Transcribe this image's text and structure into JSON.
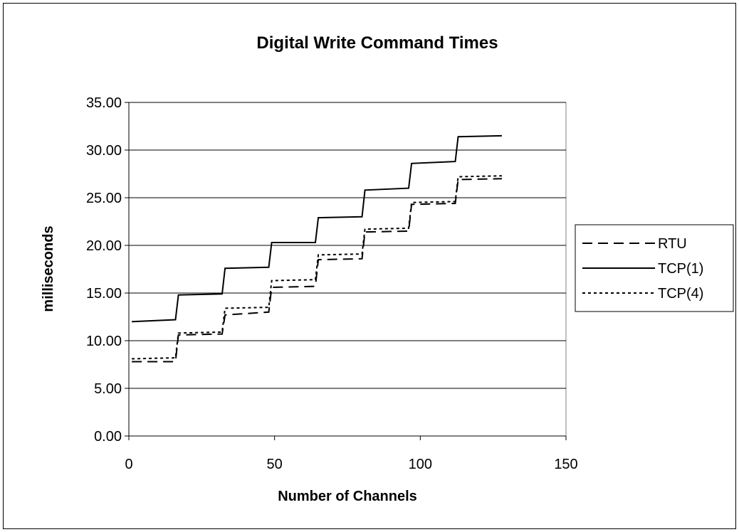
{
  "chart_data": {
    "type": "line",
    "title": "Digital Write Command Times",
    "xlabel": "Number of Channels",
    "ylabel": "milliseconds",
    "xlim": [
      0,
      150
    ],
    "ylim": [
      0,
      35
    ],
    "x_ticks": [
      "0",
      "50",
      "100",
      "150"
    ],
    "y_ticks": [
      "0.00",
      "5.00",
      "10.00",
      "15.00",
      "20.00",
      "25.00",
      "30.00",
      "35.00"
    ],
    "grid": "horizontal",
    "legend": "right",
    "series": [
      {
        "name": "RTU",
        "style": "dashed",
        "x": [
          1,
          16,
          17,
          32,
          33,
          48,
          49,
          64,
          65,
          80,
          81,
          96,
          97,
          112,
          113,
          128
        ],
        "y": [
          7.8,
          7.8,
          10.6,
          10.7,
          12.7,
          13.0,
          15.6,
          15.7,
          18.5,
          18.6,
          21.4,
          21.5,
          24.3,
          24.4,
          26.9,
          27.0
        ]
      },
      {
        "name": "TCP(1)",
        "style": "solid",
        "x": [
          1,
          16,
          17,
          32,
          33,
          48,
          49,
          64,
          65,
          80,
          81,
          96,
          97,
          112,
          113,
          128
        ],
        "y": [
          12.0,
          12.2,
          14.8,
          14.9,
          17.6,
          17.7,
          20.3,
          20.3,
          22.9,
          23.0,
          25.8,
          26.0,
          28.6,
          28.8,
          31.4,
          31.5
        ]
      },
      {
        "name": "TCP(4)",
        "style": "dotted",
        "x": [
          1,
          16,
          17,
          32,
          33,
          48,
          49,
          64,
          65,
          80,
          81,
          96,
          97,
          112,
          113,
          128
        ],
        "y": [
          8.1,
          8.2,
          10.8,
          10.9,
          13.4,
          13.5,
          16.3,
          16.4,
          19.0,
          19.1,
          21.7,
          21.8,
          24.5,
          24.6,
          27.2,
          27.3
        ]
      }
    ]
  }
}
